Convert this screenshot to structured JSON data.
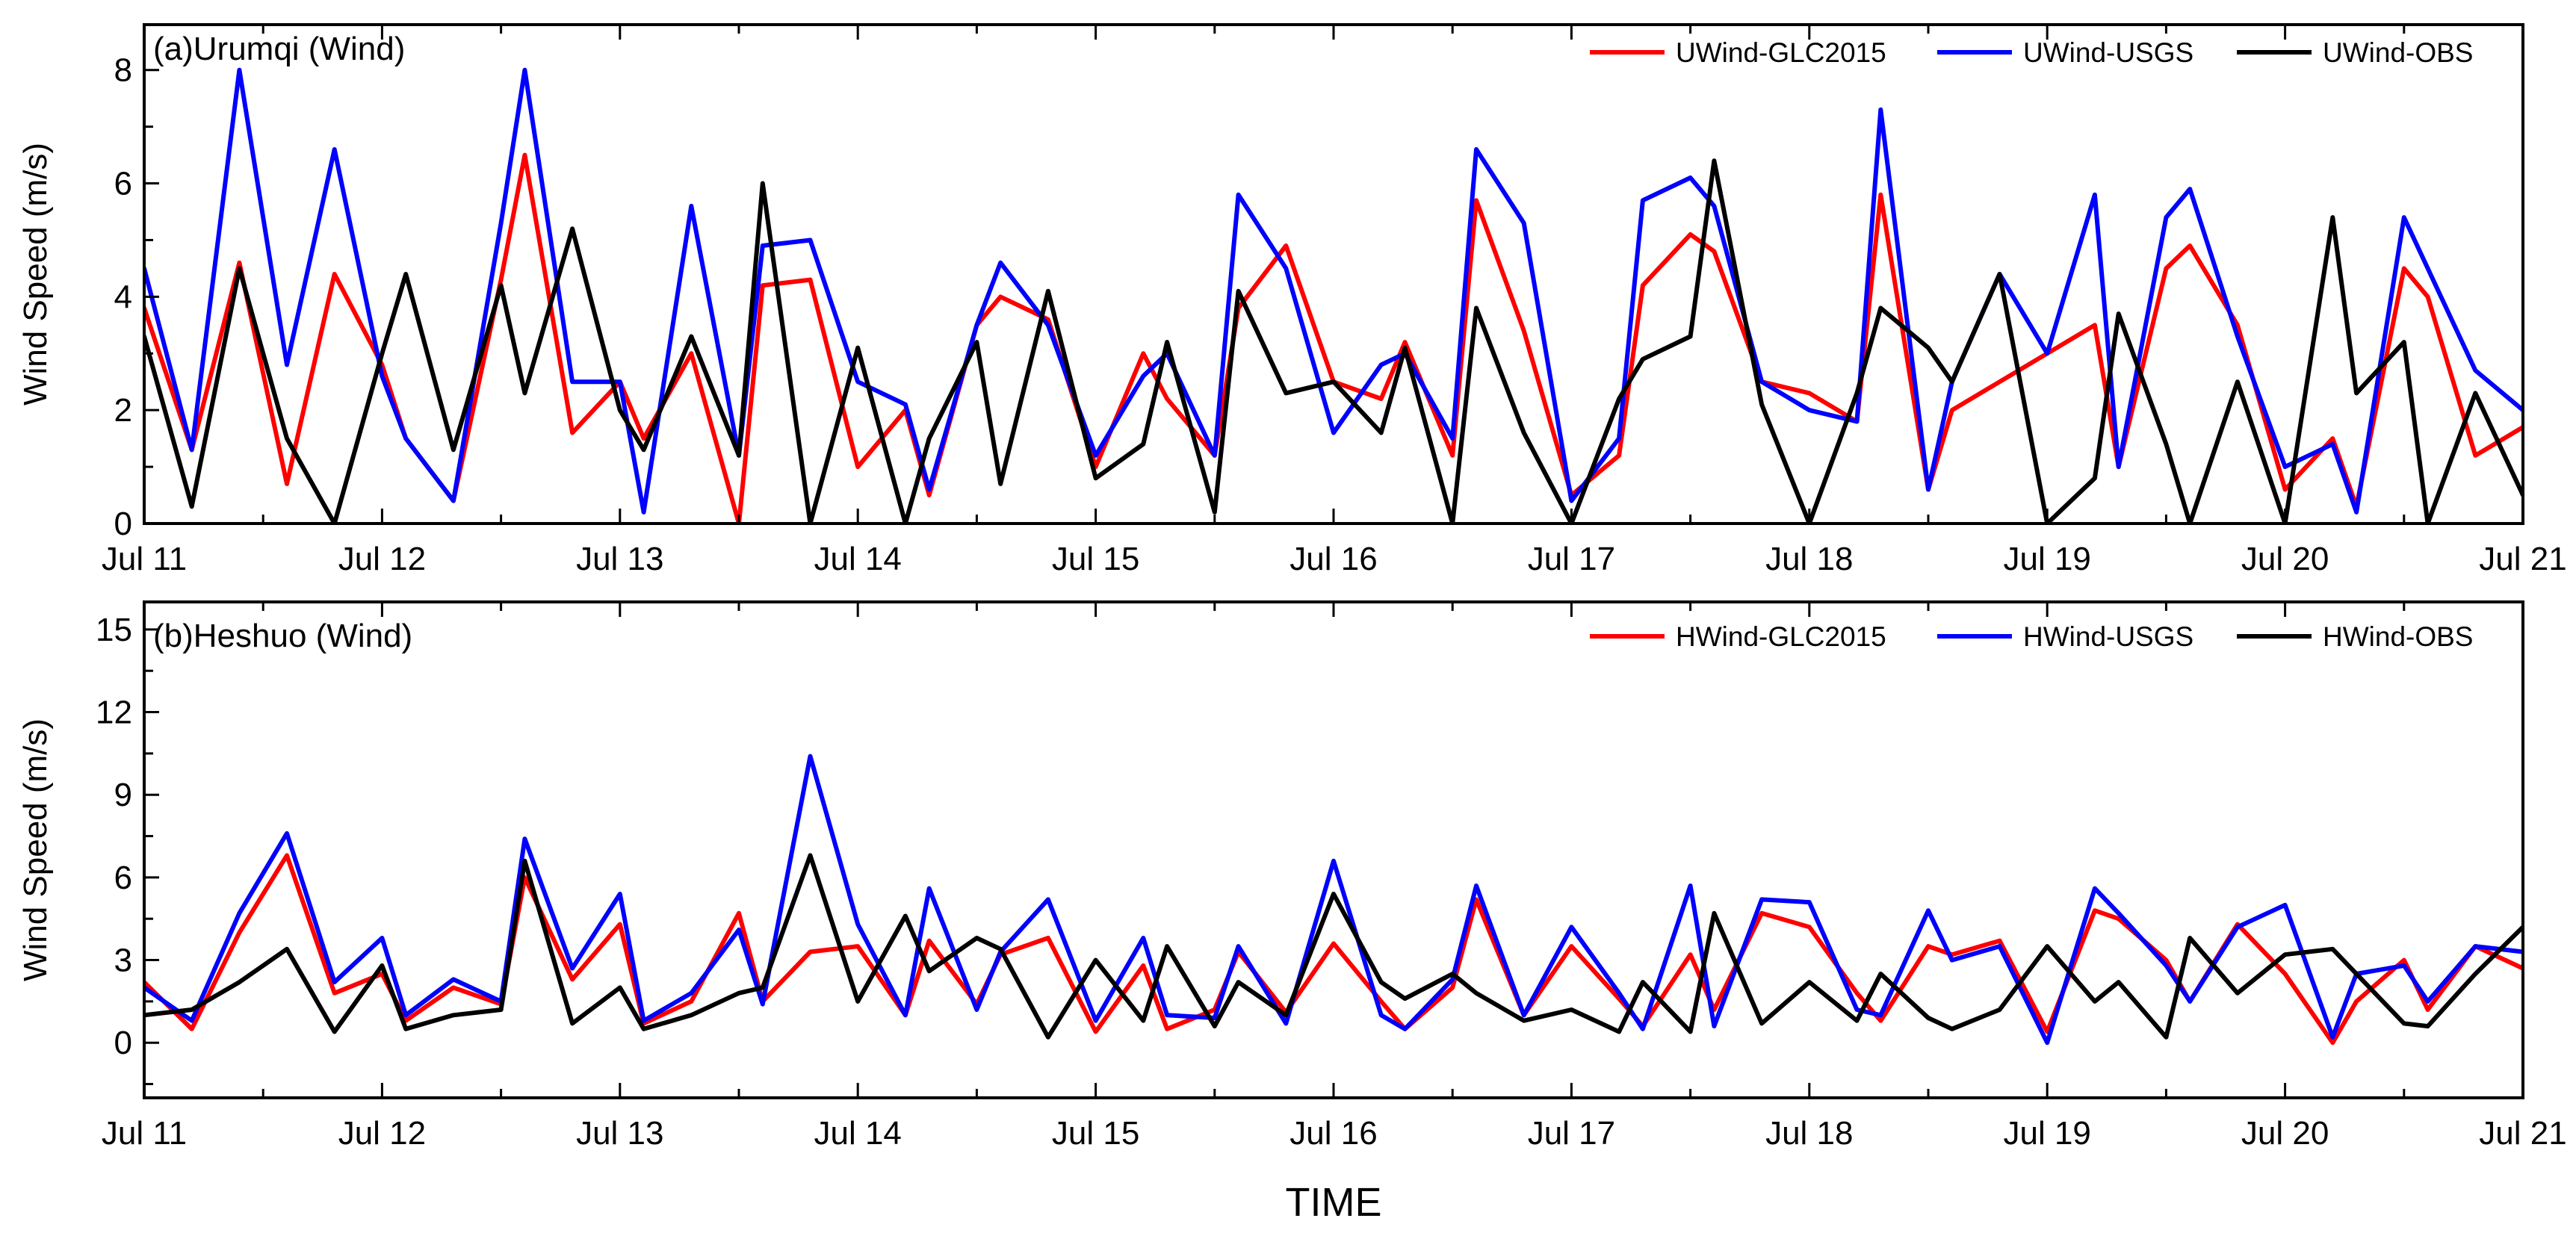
{
  "chart_data": [
    {
      "type": "line",
      "title": "(a)Urumqi (Wind)",
      "xlabel": "",
      "ylabel": "Wind Speed (m/s)",
      "x_unit": "days since Jul 11 00:00",
      "xlim": [
        0,
        10
      ],
      "ylim": [
        0,
        8.8
      ],
      "yticks": [
        0,
        2,
        4,
        6,
        8
      ],
      "xtick_labels": [
        "Jul 11",
        "Jul 12",
        "Jul 13",
        "Jul 14",
        "Jul 15",
        "Jul 16",
        "Jul 17",
        "Jul 18",
        "Jul 19",
        "Jul 20",
        "Jul 21"
      ],
      "legend_position": "top-right",
      "series": [
        {
          "name": "UWind-GLC2015",
          "color": "#ff0000",
          "x": [
            0,
            0.2,
            0.4,
            0.6,
            0.8,
            1,
            1.1,
            1.3,
            1.5,
            1.6,
            1.8,
            2,
            2.1,
            2.3,
            2.5,
            2.6,
            2.8,
            3,
            3.2,
            3.3,
            3.5,
            3.6,
            3.8,
            4,
            4.2,
            4.3,
            4.5,
            4.6,
            4.8,
            5,
            5.2,
            5.3,
            5.5,
            5.6,
            5.8,
            6,
            6.2,
            6.3,
            6.5,
            6.6,
            6.8,
            7,
            7.2,
            7.3,
            7.5,
            7.6,
            7.8,
            8,
            8.2,
            8.3,
            8.5,
            8.6,
            8.8,
            9,
            9.2,
            9.3,
            9.5,
            9.6,
            9.8,
            10
          ],
          "y": [
            3.8,
            1.3,
            4.6,
            0.7,
            4.4,
            2.8,
            1.5,
            0.4,
            4.3,
            6.5,
            1.6,
            2.5,
            1.5,
            3,
            0,
            4.2,
            4.3,
            1,
            2,
            0.5,
            3.5,
            4,
            3.6,
            1,
            3,
            2.2,
            1.2,
            3.8,
            4.9,
            2.5,
            2.2,
            3.2,
            1.2,
            5.7,
            3.4,
            0.5,
            1.2,
            4.2,
            5.1,
            4.8,
            2.5,
            2.3,
            1.8,
            5.8,
            0.6,
            2,
            2.5,
            3,
            3.5,
            1,
            4.5,
            4.9,
            3.5,
            0.6,
            1.5,
            0.3,
            4.5,
            4,
            1.2,
            1.7
          ]
        },
        {
          "name": "UWind-USGS",
          "color": "#0000ff",
          "x": [
            0,
            0.2,
            0.4,
            0.6,
            0.8,
            1,
            1.1,
            1.3,
            1.5,
            1.6,
            1.8,
            2,
            2.1,
            2.3,
            2.5,
            2.6,
            2.8,
            3,
            3.2,
            3.3,
            3.5,
            3.6,
            3.8,
            4,
            4.2,
            4.3,
            4.5,
            4.6,
            4.8,
            5,
            5.2,
            5.3,
            5.5,
            5.6,
            5.8,
            6,
            6.2,
            6.3,
            6.5,
            6.6,
            6.8,
            7,
            7.2,
            7.3,
            7.5,
            7.6,
            7.8,
            8,
            8.2,
            8.3,
            8.5,
            8.6,
            8.8,
            9,
            9.2,
            9.3,
            9.5,
            9.6,
            9.8,
            10
          ],
          "y": [
            4.5,
            1.3,
            8,
            2.8,
            6.6,
            2.6,
            1.5,
            0.4,
            5.3,
            8,
            2.5,
            2.5,
            0.2,
            5.6,
            1.2,
            4.9,
            5,
            2.5,
            2.1,
            0.6,
            3.5,
            4.6,
            3.5,
            1.2,
            2.6,
            3,
            1.2,
            5.8,
            4.5,
            1.6,
            2.8,
            3,
            1.5,
            6.6,
            5.3,
            0.4,
            1.5,
            5.7,
            6.1,
            5.6,
            2.5,
            2,
            1.8,
            7.3,
            0.6,
            2.5,
            4.4,
            3,
            5.8,
            1,
            5.4,
            5.9,
            3.3,
            1,
            1.4,
            0.2,
            5.4,
            4.5,
            2.7,
            2
          ]
        },
        {
          "name": "UWind-OBS",
          "color": "#000000",
          "x": [
            0,
            0.2,
            0.4,
            0.6,
            0.8,
            1,
            1.1,
            1.3,
            1.5,
            1.6,
            1.8,
            2,
            2.1,
            2.3,
            2.5,
            2.6,
            2.8,
            3,
            3.2,
            3.3,
            3.5,
            3.6,
            3.8,
            4,
            4.2,
            4.3,
            4.5,
            4.6,
            4.8,
            5,
            5.2,
            5.3,
            5.5,
            5.6,
            5.8,
            6,
            6.2,
            6.3,
            6.5,
            6.6,
            6.8,
            7,
            7.2,
            7.3,
            7.5,
            7.6,
            7.8,
            8,
            8.2,
            8.3,
            8.5,
            8.6,
            8.8,
            9,
            9.2,
            9.3,
            9.5,
            9.6,
            9.8,
            10
          ],
          "y": [
            3.3,
            0.3,
            4.5,
            1.5,
            0,
            3,
            4.4,
            1.3,
            4.2,
            2.3,
            5.2,
            2,
            1.3,
            3.3,
            1.2,
            6,
            0,
            3.1,
            0,
            1.5,
            3.2,
            0.7,
            4.1,
            0.8,
            1.4,
            3.2,
            0.2,
            4.1,
            2.3,
            2.5,
            1.6,
            3.1,
            0,
            3.8,
            1.6,
            0,
            2.2,
            2.9,
            3.3,
            6.4,
            2.1,
            0,
            2.3,
            3.8,
            3.1,
            2.5,
            4.4,
            0,
            0.8,
            3.7,
            1.4,
            0,
            2.5,
            0,
            5.4,
            2.3,
            3.2,
            0,
            2.3,
            0.5
          ]
        }
      ]
    },
    {
      "type": "line",
      "title": "(b)Heshuo (Wind)",
      "xlabel": "TIME",
      "ylabel": "Wind Speed (m/s)",
      "x_unit": "days since Jul 11 00:00",
      "xlim": [
        0,
        10
      ],
      "ylim": [
        -2,
        16
      ],
      "yticks": [
        0,
        3,
        6,
        9,
        12,
        15
      ],
      "xtick_labels": [
        "Jul 11",
        "Jul 12",
        "Jul 13",
        "Jul 14",
        "Jul 15",
        "Jul 16",
        "Jul 17",
        "Jul 18",
        "Jul 19",
        "Jul 20",
        "Jul 21"
      ],
      "legend_position": "top-right",
      "series": [
        {
          "name": "HWind-GLC2015",
          "color": "#ff0000",
          "x": [
            0,
            0.2,
            0.4,
            0.6,
            0.8,
            1,
            1.1,
            1.3,
            1.5,
            1.6,
            1.8,
            2,
            2.1,
            2.3,
            2.5,
            2.6,
            2.8,
            3,
            3.2,
            3.3,
            3.5,
            3.6,
            3.8,
            4,
            4.2,
            4.3,
            4.5,
            4.6,
            4.8,
            5,
            5.2,
            5.3,
            5.5,
            5.6,
            5.8,
            6,
            6.2,
            6.3,
            6.5,
            6.6,
            6.8,
            7,
            7.2,
            7.3,
            7.5,
            7.6,
            7.8,
            8,
            8.2,
            8.3,
            8.5,
            8.6,
            8.8,
            9,
            9.2,
            9.3,
            9.5,
            9.6,
            9.8,
            10
          ],
          "y": [
            2.2,
            0.5,
            4,
            6.8,
            1.8,
            2.5,
            0.8,
            2,
            1.4,
            6,
            2.3,
            4.3,
            0.7,
            1.5,
            4.7,
            1.5,
            3.3,
            3.5,
            1,
            3.7,
            1.4,
            3.2,
            3.8,
            0.4,
            2.8,
            0.5,
            1.2,
            3.3,
            1.1,
            3.6,
            1.5,
            0.5,
            2,
            5.2,
            1,
            3.5,
            1.6,
            0.6,
            3.2,
            1.2,
            4.7,
            4.2,
            1.8,
            0.8,
            3.5,
            3.2,
            3.7,
            0.4,
            4.8,
            4.5,
            3,
            1.5,
            4.3,
            2.5,
            0,
            1.5,
            3,
            1.2,
            3.5,
            2.7
          ]
        },
        {
          "name": "HWind-USGS",
          "color": "#0000ff",
          "x": [
            0,
            0.2,
            0.4,
            0.6,
            0.8,
            1,
            1.1,
            1.3,
            1.5,
            1.6,
            1.8,
            2,
            2.1,
            2.3,
            2.5,
            2.6,
            2.8,
            3,
            3.2,
            3.3,
            3.5,
            3.6,
            3.8,
            4,
            4.2,
            4.3,
            4.5,
            4.6,
            4.8,
            5,
            5.2,
            5.3,
            5.5,
            5.6,
            5.8,
            6,
            6.2,
            6.3,
            6.5,
            6.6,
            6.8,
            7,
            7.2,
            7.3,
            7.5,
            7.6,
            7.8,
            8,
            8.2,
            8.3,
            8.5,
            8.6,
            8.8,
            9,
            9.2,
            9.3,
            9.5,
            9.6,
            9.8,
            10
          ],
          "y": [
            2,
            0.8,
            4.7,
            7.6,
            2.2,
            3.8,
            1,
            2.3,
            1.5,
            7.4,
            2.7,
            5.4,
            0.8,
            1.8,
            4.1,
            1.4,
            10.4,
            4.3,
            1,
            5.6,
            1.2,
            3.3,
            5.2,
            0.8,
            3.8,
            1,
            0.9,
            3.5,
            0.7,
            6.6,
            1,
            0.5,
            2.3,
            5.7,
            1,
            4.2,
            1.8,
            0.5,
            5.7,
            0.6,
            5.2,
            5.1,
            1.2,
            1,
            4.8,
            3,
            3.5,
            0,
            5.6,
            4.7,
            2.8,
            1.5,
            4.2,
            5,
            0.2,
            2.5,
            2.8,
            1.5,
            3.5,
            3.3
          ]
        },
        {
          "name": "HWind-OBS",
          "color": "#000000",
          "x": [
            0,
            0.2,
            0.4,
            0.6,
            0.8,
            1,
            1.1,
            1.3,
            1.5,
            1.6,
            1.8,
            2,
            2.1,
            2.3,
            2.5,
            2.6,
            2.8,
            3,
            3.2,
            3.3,
            3.5,
            3.6,
            3.8,
            4,
            4.2,
            4.3,
            4.5,
            4.6,
            4.8,
            5,
            5.2,
            5.3,
            5.5,
            5.6,
            5.8,
            6,
            6.2,
            6.3,
            6.5,
            6.6,
            6.8,
            7,
            7.2,
            7.3,
            7.5,
            7.6,
            7.8,
            8,
            8.2,
            8.3,
            8.5,
            8.6,
            8.8,
            9,
            9.2,
            9.3,
            9.5,
            9.6,
            9.8,
            10
          ],
          "y": [
            1,
            1.2,
            2.2,
            3.4,
            0.4,
            2.8,
            0.5,
            1,
            1.2,
            6.6,
            0.7,
            2,
            0.5,
            1,
            1.8,
            2,
            6.8,
            1.5,
            4.6,
            2.6,
            3.8,
            3.4,
            0.2,
            3,
            0.8,
            3.5,
            0.6,
            2.2,
            1,
            5.4,
            2.2,
            1.6,
            2.5,
            1.8,
            0.8,
            1.2,
            0.4,
            2.2,
            0.4,
            4.7,
            0.7,
            2.2,
            0.8,
            2.5,
            0.9,
            0.5,
            1.2,
            3.5,
            1.5,
            2.2,
            0.2,
            3.8,
            1.8,
            3.2,
            3.4,
            2.5,
            0.7,
            0.6,
            2.5,
            4.2
          ]
        }
      ]
    }
  ]
}
